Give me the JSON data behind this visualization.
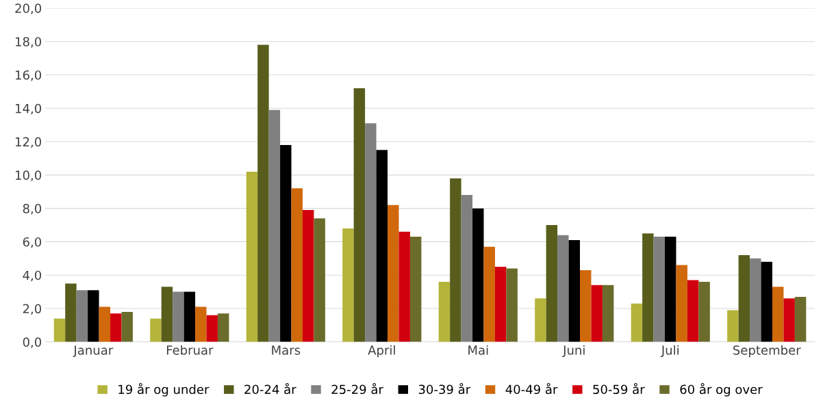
{
  "chart_data": {
    "type": "bar",
    "categories": [
      "Januar",
      "Februar",
      "Mars",
      "April",
      "Mai",
      "Juni",
      "Juli",
      "September"
    ],
    "series": [
      {
        "name": "19 år og under",
        "color": "#b4b43a",
        "values": [
          1.4,
          1.4,
          10.2,
          6.8,
          3.6,
          2.6,
          2.3,
          1.9
        ]
      },
      {
        "name": "20-24 år",
        "color": "#585d1c",
        "values": [
          3.5,
          3.3,
          17.8,
          15.2,
          9.8,
          7.0,
          6.5,
          5.2
        ]
      },
      {
        "name": "25-29 år",
        "color": "#808080",
        "values": [
          3.1,
          3.0,
          13.9,
          13.1,
          8.8,
          6.4,
          6.3,
          5.0
        ]
      },
      {
        "name": "30-39 år",
        "color": "#000000",
        "values": [
          3.1,
          3.0,
          11.8,
          11.5,
          8.0,
          6.1,
          6.3,
          4.8
        ]
      },
      {
        "name": "40-49 år",
        "color": "#d0680c",
        "values": [
          2.1,
          2.1,
          9.2,
          8.2,
          5.7,
          4.3,
          4.6,
          3.3
        ]
      },
      {
        "name": "50-59 år",
        "color": "#d2000f",
        "values": [
          1.7,
          1.6,
          7.9,
          6.6,
          4.5,
          3.4,
          3.7,
          2.6
        ]
      },
      {
        "name": "60 år og over",
        "color": "#6b6c2b",
        "values": [
          1.8,
          1.7,
          7.4,
          6.3,
          4.4,
          3.4,
          3.6,
          2.7
        ]
      }
    ],
    "ylim": [
      0,
      20
    ],
    "yticks": [
      {
        "value": 0,
        "label": "0,0"
      },
      {
        "value": 2,
        "label": "2,0"
      },
      {
        "value": 4,
        "label": "4,0"
      },
      {
        "value": 6,
        "label": "6,0"
      },
      {
        "value": 8,
        "label": "8,0"
      },
      {
        "value": 10,
        "label": "10,0"
      },
      {
        "value": 12,
        "label": "12,0"
      },
      {
        "value": 14,
        "label": "14,0"
      },
      {
        "value": 16,
        "label": "16,0"
      },
      {
        "value": 18,
        "label": "18,0"
      },
      {
        "value": 20,
        "label": "20,0"
      }
    ],
    "grid": "y",
    "legend": "bottom"
  }
}
